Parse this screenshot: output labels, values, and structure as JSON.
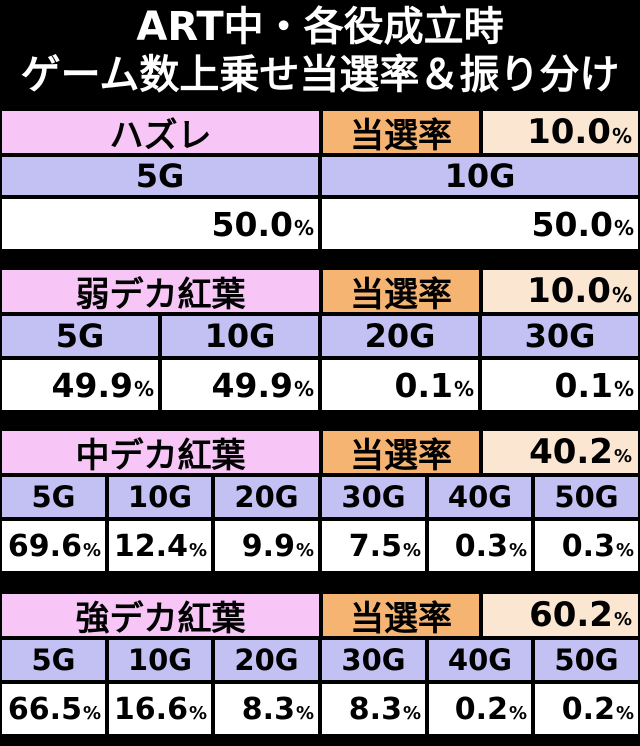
{
  "title": {
    "line1": "ART中・各役成立時",
    "line2": "ゲーム数上乗せ当選率＆振り分け"
  },
  "rate_label": "当選率",
  "percent_sign": "%",
  "tables": [
    {
      "name": "ハズレ",
      "rate": "10.0",
      "columns": [
        {
          "games": "5G",
          "value": "50.0"
        },
        {
          "games": "10G",
          "value": "50.0"
        }
      ]
    },
    {
      "name": "弱デカ紅葉",
      "rate": "10.0",
      "columns": [
        {
          "games": "5G",
          "value": "49.9"
        },
        {
          "games": "10G",
          "value": "49.9"
        },
        {
          "games": "20G",
          "value": "0.1"
        },
        {
          "games": "30G",
          "value": "0.1"
        }
      ]
    },
    {
      "name": "中デカ紅葉",
      "rate": "40.2",
      "columns": [
        {
          "games": "5G",
          "value": "69.6"
        },
        {
          "games": "10G",
          "value": "12.4"
        },
        {
          "games": "20G",
          "value": "9.9"
        },
        {
          "games": "30G",
          "value": "7.5"
        },
        {
          "games": "40G",
          "value": "0.3"
        },
        {
          "games": "50G",
          "value": "0.3"
        }
      ]
    },
    {
      "name": "強デカ紅葉",
      "rate": "60.2",
      "columns": [
        {
          "games": "5G",
          "value": "66.5"
        },
        {
          "games": "10G",
          "value": "16.6"
        },
        {
          "games": "20G",
          "value": "8.3"
        },
        {
          "games": "30G",
          "value": "8.3"
        },
        {
          "games": "40G",
          "value": "0.2"
        },
        {
          "games": "50G",
          "value": "0.2"
        }
      ]
    }
  ]
}
